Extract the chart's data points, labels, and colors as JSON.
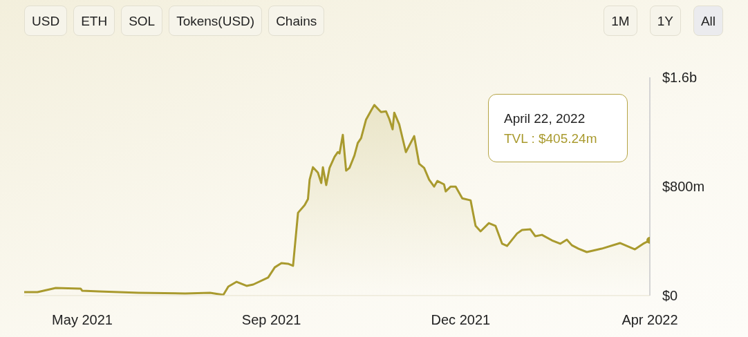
{
  "chart_data": {
    "type": "area",
    "x": [
      "2021-04-10",
      "2021-04-18",
      "2021-04-29",
      "2021-05-14",
      "2021-05-15",
      "2021-05-25",
      "2021-06-18",
      "2021-07-16",
      "2021-07-31",
      "2021-08-08",
      "2021-08-11",
      "2021-08-16",
      "2021-08-22",
      "2021-08-26",
      "2021-09-04",
      "2021-09-08",
      "2021-09-12",
      "2021-09-16",
      "2021-09-19",
      "2021-09-22",
      "2021-09-26",
      "2021-09-28",
      "2021-09-29",
      "2021-10-01",
      "2021-10-04",
      "2021-10-06",
      "2021-10-07",
      "2021-10-09",
      "2021-10-11",
      "2021-10-14",
      "2021-10-16",
      "2021-10-17",
      "2021-10-19",
      "2021-10-21",
      "2021-10-23",
      "2021-10-26",
      "2021-10-28",
      "2021-10-30",
      "2021-11-02",
      "2021-11-05",
      "2021-11-07",
      "2021-11-11",
      "2021-11-14",
      "2021-11-16",
      "2021-11-18",
      "2021-11-19",
      "2021-11-22",
      "2021-11-26",
      "2021-12-01",
      "2021-12-04",
      "2021-12-07",
      "2021-12-10",
      "2021-12-13",
      "2021-12-15",
      "2021-12-19",
      "2021-12-20",
      "2021-12-23",
      "2021-12-26",
      "2021-12-30",
      "2022-01-04",
      "2022-01-07",
      "2022-01-10",
      "2022-01-15",
      "2022-01-19",
      "2022-01-23",
      "2022-01-26",
      "2022-02-01",
      "2022-02-04",
      "2022-02-09",
      "2022-02-12",
      "2022-02-16",
      "2022-02-22",
      "2022-02-27",
      "2022-03-03",
      "2022-03-06",
      "2022-03-10",
      "2022-03-15",
      "2022-03-24",
      "2022-04-04",
      "2022-04-13",
      "2022-04-18",
      "2022-04-22"
    ],
    "series": [
      {
        "color": "#a99a2e",
        "values": [
          25000000,
          25000000,
          56000000,
          51000000,
          35000000,
          30000000,
          20000000,
          15000000,
          20000000,
          5000000,
          66000000,
          101000000,
          71000000,
          81000000,
          132000000,
          207000000,
          238000000,
          233000000,
          218000000,
          607000000,
          663000000,
          708000000,
          850000000,
          941000000,
          901000000,
          825000000,
          941000000,
          810000000,
          936000000,
          1017000000,
          1052000000,
          1042000000,
          1179000000,
          916000000,
          936000000,
          1027000000,
          1118000000,
          1154000000,
          1290000000,
          1356000000,
          1397000000,
          1346000000,
          1351000000,
          1295000000,
          1219000000,
          1341000000,
          1255000000,
          1052000000,
          1169000000,
          966000000,
          936000000,
          850000000,
          799000000,
          840000000,
          815000000,
          764000000,
          799000000,
          799000000,
          713000000,
          698000000,
          511000000,
          471000000,
          531000000,
          511000000,
          380000000,
          364000000,
          455000000,
          481000000,
          486000000,
          435000000,
          445000000,
          405000000,
          380000000,
          410000000,
          369000000,
          344000000,
          319000000,
          344000000,
          385000000,
          339000000,
          380000000,
          405000000
        ]
      }
    ],
    "xlim": [
      "2021-04-10",
      "2022-04-22"
    ],
    "xticks": [
      {
        "value": "2021-05-15",
        "label": "May 2021"
      },
      {
        "value": "2021-09-06",
        "label": "Sep 2021"
      },
      {
        "value": "2021-12-29",
        "label": "Dec 2021"
      },
      {
        "value": "2022-04-22",
        "label": "Apr 2022"
      }
    ],
    "ylim": [
      0,
      1600000000
    ],
    "yticks": [
      {
        "value": 0,
        "label": "$0"
      },
      {
        "value": 800000000,
        "label": "$800m"
      },
      {
        "value": 1600000000,
        "label": "$1.6b"
      }
    ],
    "annotations": [
      "USD",
      "ETH",
      "SOL",
      "Tokens(USD)",
      "Chains",
      "1M",
      "1Y",
      "All",
      "April 22, 2022",
      "TVL : $405.24m"
    ]
  }
}
